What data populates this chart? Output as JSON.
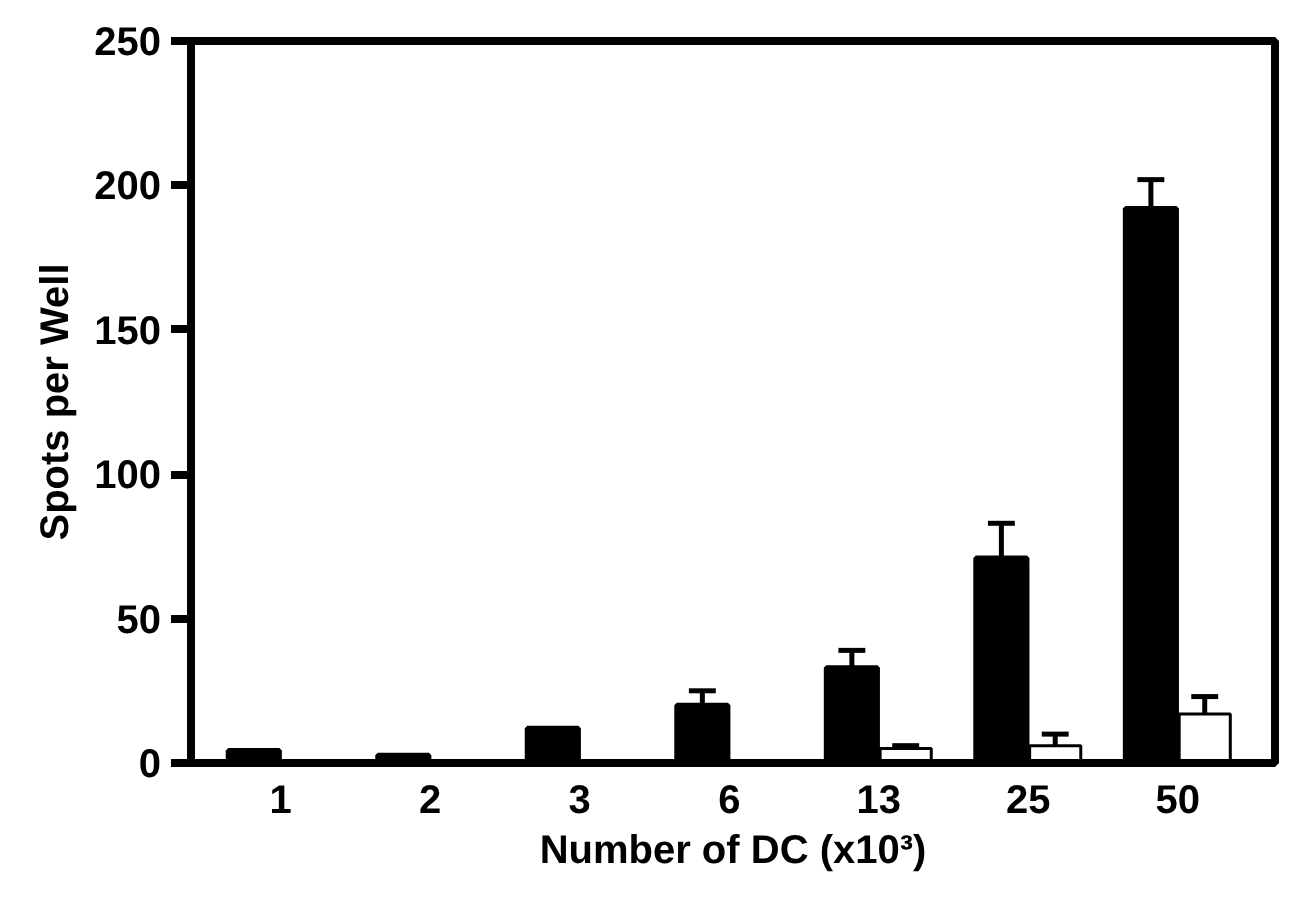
{
  "chart_data": {
    "type": "bar",
    "xlabel": "Number of DC (x10³)",
    "ylabel": "Spots per Well",
    "categories": [
      "1",
      "2",
      "3",
      "6",
      "13",
      "25",
      "50"
    ],
    "series": [
      {
        "color": "#000000",
        "values": [
          4.3,
          2.7,
          12,
          20,
          33,
          71,
          192
        ],
        "errors": [
          null,
          null,
          null,
          [
            20,
            25
          ],
          [
            33,
            39
          ],
          [
            71,
            83
          ],
          [
            192,
            202
          ]
        ]
      },
      {
        "color": "#ffffff",
        "values": [
          null,
          null,
          null,
          null,
          5,
          6,
          17
        ],
        "errors": [
          null,
          null,
          null,
          null,
          [
            5,
            6
          ],
          [
            6,
            10
          ],
          [
            17,
            23
          ]
        ]
      }
    ],
    "ylim": [
      0,
      250
    ],
    "yticks": [
      0,
      50,
      100,
      150,
      200,
      250
    ],
    "grid": false
  }
}
